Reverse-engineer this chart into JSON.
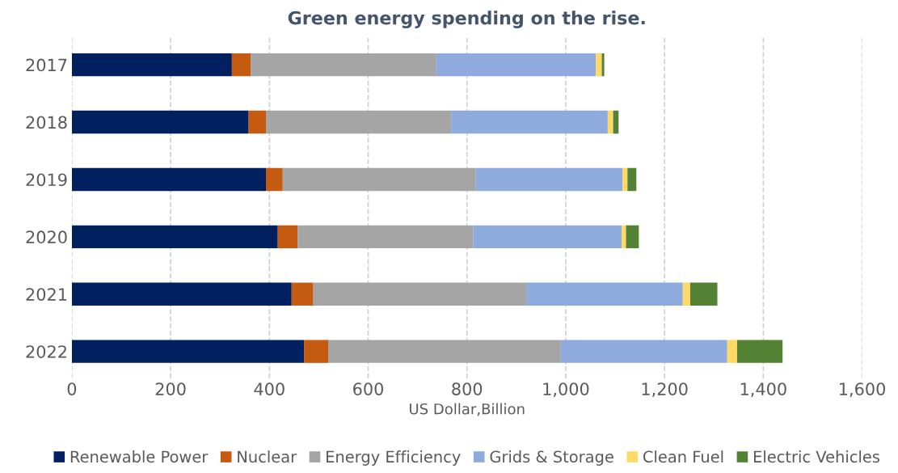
{
  "chart_data": {
    "type": "bar",
    "orientation": "horizontal",
    "stacked": true,
    "title": "Green energy spending on the rise.",
    "xlabel": "US Dollar,Billion",
    "categories": [
      "2017",
      "2018",
      "2019",
      "2020",
      "2021",
      "2022"
    ],
    "series": [
      {
        "name": "Renewable Power",
        "color": "#002060",
        "values": [
          324,
          358,
          393,
          417,
          445,
          470
        ]
      },
      {
        "name": "Nuclear",
        "color": "#c55a11",
        "values": [
          38,
          35,
          34,
          40,
          44,
          49
        ]
      },
      {
        "name": "Energy Efficiency",
        "color": "#a5a5a5",
        "values": [
          376,
          375,
          391,
          356,
          431,
          471
        ]
      },
      {
        "name": "Grids & Storage",
        "color": "#8faadc",
        "values": [
          323,
          317,
          297,
          300,
          317,
          337
        ]
      },
      {
        "name": "Clean Fuel",
        "color": "#ffd966",
        "values": [
          12,
          11,
          10,
          9,
          15,
          20
        ]
      },
      {
        "name": "Electric Vehicles",
        "color": "#548235",
        "values": [
          5,
          11,
          18,
          26,
          55,
          92
        ]
      }
    ],
    "xlim": [
      0,
      1600
    ],
    "xticks": [
      0,
      200,
      400,
      600,
      800,
      {
        "value": 1000,
        "label": "1,000"
      },
      {
        "value": 1200,
        "label": "1,200"
      },
      {
        "value": 1400,
        "label": "1,400"
      },
      {
        "value": 1600,
        "label": "1,600"
      }
    ],
    "grid": "x",
    "legend": "bottom"
  }
}
